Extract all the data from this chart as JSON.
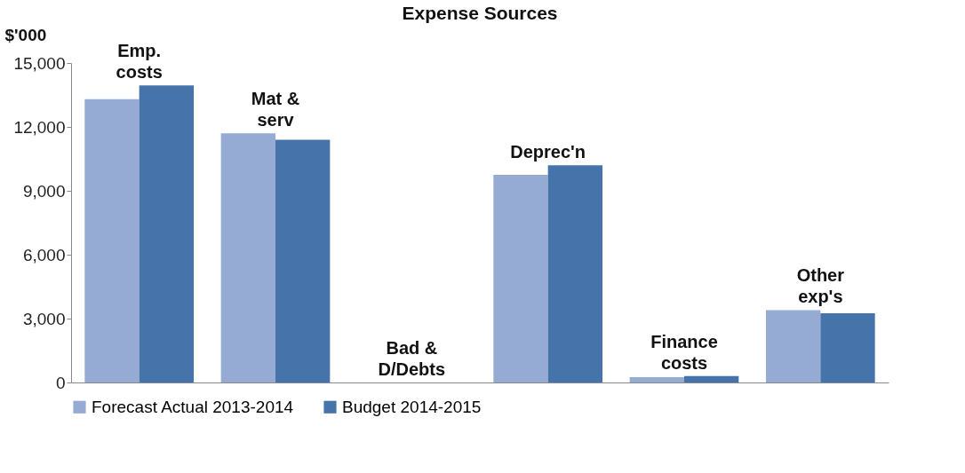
{
  "chart_data": {
    "type": "bar",
    "title": "Expense Sources",
    "ylabel": "$'000",
    "categories": [
      "Emp. costs",
      "Mat & serv",
      "Bad & D/Debts",
      "Deprec'n",
      "Finance costs",
      "Other exp's"
    ],
    "series": [
      {
        "name": "Forecast Actual 2013-2014",
        "color": "#95abd3",
        "values": [
          13300,
          11700,
          0,
          9750,
          250,
          3400
        ]
      },
      {
        "name": "Budget 2014-2015",
        "color": "#4674aa",
        "values": [
          13950,
          11400,
          0,
          10200,
          300,
          3250
        ]
      }
    ],
    "ylim": [
      0,
      15000
    ],
    "yticks": [
      {
        "value": 0,
        "label": "0"
      },
      {
        "value": 3000,
        "label": "3,000"
      },
      {
        "value": 6000,
        "label": "6,000"
      },
      {
        "value": 9000,
        "label": "9,000"
      },
      {
        "value": 12000,
        "label": "12,000"
      },
      {
        "value": 15000,
        "label": "15,000"
      }
    ],
    "grid": false,
    "legend": "bottom",
    "tick_labels": "y"
  }
}
